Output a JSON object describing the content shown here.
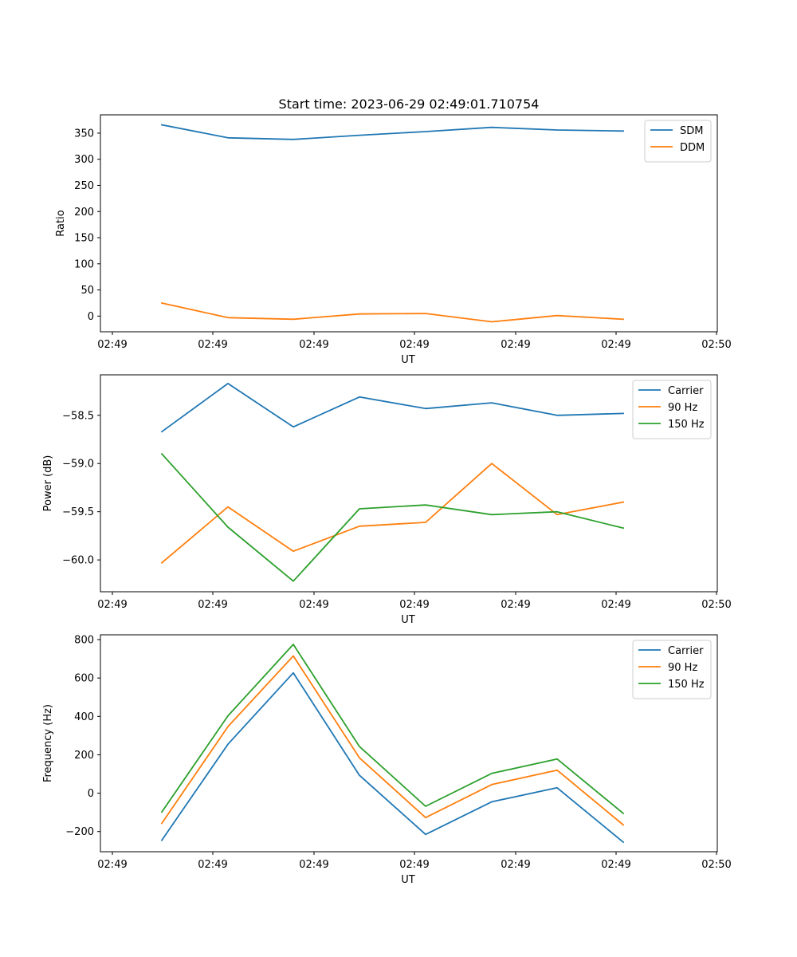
{
  "figure_title": "Start time: 2023-06-29 02:49:01.710754",
  "colors": {
    "blue": "#1f77b4",
    "orange": "#ff7f0e",
    "green": "#2ca02c"
  },
  "chart_data": [
    {
      "type": "line",
      "title": "Start time: 2023-06-29 02:49:01.710754",
      "xlabel": "UT",
      "ylabel": "Ratio",
      "xticklabels": [
        "02:49",
        "02:49",
        "02:49",
        "02:49",
        "02:49",
        "02:49",
        "02:50"
      ],
      "yticks": [
        0,
        50,
        100,
        150,
        200,
        250,
        300,
        350
      ],
      "yticklabels": [
        "0",
        "50",
        "100",
        "150",
        "200",
        "250",
        "300",
        "350"
      ],
      "ylim": [
        -30,
        385
      ],
      "legend_position": "top-right",
      "grid": false,
      "series": [
        {
          "name": "SDM",
          "color": "#1f77b4",
          "values": [
            366,
            341,
            338,
            346,
            353,
            361,
            356,
            354
          ]
        },
        {
          "name": "DDM",
          "color": "#ff7f0e",
          "values": [
            25,
            -3,
            -6,
            4,
            5,
            -11,
            1,
            -6
          ]
        }
      ]
    },
    {
      "type": "line",
      "title": "",
      "xlabel": "UT",
      "ylabel": "Power (dB)",
      "xticklabels": [
        "02:49",
        "02:49",
        "02:49",
        "02:49",
        "02:49",
        "02:49",
        "02:50"
      ],
      "yticks": [
        -58.5,
        -59.0,
        -59.5,
        -60.0
      ],
      "yticklabels": [
        "−58.5",
        "−59.0",
        "−59.5",
        "−60.0"
      ],
      "ylim": [
        -60.33,
        -58.08
      ],
      "legend_position": "top-right",
      "grid": false,
      "series": [
        {
          "name": "Carrier",
          "color": "#1f77b4",
          "values": [
            -58.67,
            -58.17,
            -58.62,
            -58.31,
            -58.43,
            -58.37,
            -58.5,
            -58.48
          ]
        },
        {
          "name": "90 Hz",
          "color": "#ff7f0e",
          "values": [
            -60.03,
            -59.45,
            -59.91,
            -59.65,
            -59.61,
            -59.0,
            -59.53,
            -59.4
          ]
        },
        {
          "name": "150 Hz",
          "color": "#2ca02c",
          "values": [
            -58.9,
            -59.66,
            -60.22,
            -59.47,
            -59.43,
            -59.53,
            -59.5,
            -59.67
          ]
        }
      ]
    },
    {
      "type": "line",
      "title": "",
      "xlabel": "UT",
      "ylabel": "Frequency (Hz)",
      "xticklabels": [
        "02:49",
        "02:49",
        "02:49",
        "02:49",
        "02:49",
        "02:49",
        "02:50"
      ],
      "yticks": [
        800,
        600,
        400,
        200,
        0,
        -200
      ],
      "yticklabels": [
        "800",
        "600",
        "400",
        "200",
        "0",
        "−200"
      ],
      "ylim": [
        -305,
        825
      ],
      "legend_position": "top-right",
      "grid": false,
      "series": [
        {
          "name": "Carrier",
          "color": "#1f77b4",
          "values": [
            -245,
            255,
            627,
            93,
            -215,
            -45,
            28,
            -255
          ]
        },
        {
          "name": "90 Hz",
          "color": "#ff7f0e",
          "values": [
            -157,
            347,
            715,
            184,
            -127,
            45,
            120,
            -165
          ]
        },
        {
          "name": "150 Hz",
          "color": "#2ca02c",
          "values": [
            -98,
            403,
            775,
            243,
            -68,
            103,
            178,
            -105
          ]
        }
      ]
    }
  ]
}
